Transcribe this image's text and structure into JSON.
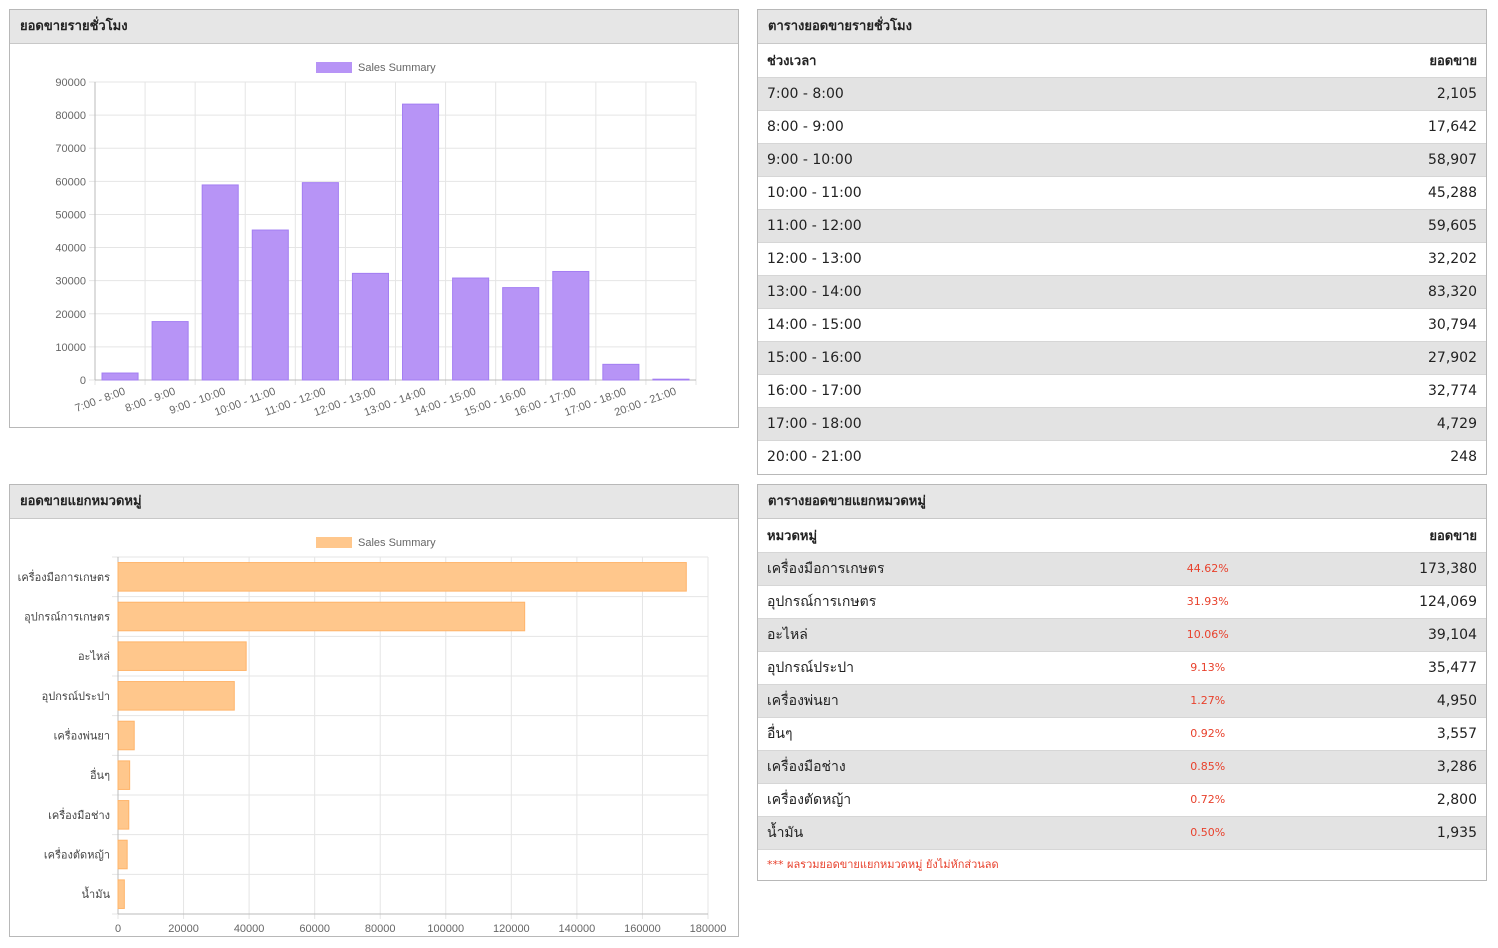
{
  "hourly_panel": {
    "title": "ยอดขายรายชั่วโมง"
  },
  "hourly_table_panel": {
    "title": "ตารางยอดขายรายชั่วโมง",
    "col_time": "ช่วงเวลา",
    "col_sales": "ยอดขาย",
    "rows": [
      {
        "time": "7:00 - 8:00",
        "sales": "2,105"
      },
      {
        "time": "8:00 - 9:00",
        "sales": "17,642"
      },
      {
        "time": "9:00 - 10:00",
        "sales": "58,907"
      },
      {
        "time": "10:00 - 11:00",
        "sales": "45,288"
      },
      {
        "time": "11:00 - 12:00",
        "sales": "59,605"
      },
      {
        "time": "12:00 - 13:00",
        "sales": "32,202"
      },
      {
        "time": "13:00 - 14:00",
        "sales": "83,320"
      },
      {
        "time": "14:00 - 15:00",
        "sales": "30,794"
      },
      {
        "time": "15:00 - 16:00",
        "sales": "27,902"
      },
      {
        "time": "16:00 - 17:00",
        "sales": "32,774"
      },
      {
        "time": "17:00 - 18:00",
        "sales": "4,729"
      },
      {
        "time": "20:00 - 21:00",
        "sales": "248"
      }
    ]
  },
  "category_panel": {
    "title": "ยอดขายแยกหมวดหมู่"
  },
  "category_table_panel": {
    "title": "ตารางยอดขายแยกหมวดหมู่",
    "col_category": "หมวดหมู่",
    "col_sales": "ยอดขาย",
    "rows": [
      {
        "name": "เครื่องมือการเกษตร",
        "pct": "44.62%",
        "sales": "173,380"
      },
      {
        "name": "อุปกรณ์การเกษตร",
        "pct": "31.93%",
        "sales": "124,069"
      },
      {
        "name": "อะไหล่",
        "pct": "10.06%",
        "sales": "39,104"
      },
      {
        "name": "อุปกรณ์ประปา",
        "pct": "9.13%",
        "sales": "35,477"
      },
      {
        "name": "เครื่องพ่นยา",
        "pct": "1.27%",
        "sales": "4,950"
      },
      {
        "name": "อื่นๆ",
        "pct": "0.92%",
        "sales": "3,557"
      },
      {
        "name": "เครื่องมือช่าง",
        "pct": "0.85%",
        "sales": "3,286"
      },
      {
        "name": "เครื่องตัดหญ้า",
        "pct": "0.72%",
        "sales": "2,800"
      },
      {
        "name": "น้ำมัน",
        "pct": "0.50%",
        "sales": "1,935"
      }
    ],
    "note": "*** ผลรวมยอดขายแยกหมวดหมู่ ยังไม่หักส่วนลด"
  },
  "chart_data": [
    {
      "type": "bar",
      "legend": "Sales Summary",
      "legend_position": "top",
      "color": "#b794f6",
      "categories": [
        "7:00 - 8:00",
        "8:00 - 9:00",
        "9:00 - 10:00",
        "10:00 - 11:00",
        "11:00 - 12:00",
        "12:00 - 13:00",
        "13:00 - 14:00",
        "14:00 - 15:00",
        "15:00 - 16:00",
        "16:00 - 17:00",
        "17:00 - 18:00",
        "20:00 - 21:00"
      ],
      "values": [
        2105,
        17642,
        58907,
        45288,
        59605,
        32202,
        83320,
        30794,
        27902,
        32774,
        4729,
        248
      ],
      "ylim": [
        0,
        90000
      ],
      "yticks": [
        "0",
        "10000",
        "20000",
        "30000",
        "40000",
        "50000",
        "60000",
        "70000",
        "80000",
        "90000"
      ],
      "grid": true
    },
    {
      "type": "bar",
      "orientation": "horizontal",
      "legend": "Sales Summary",
      "legend_position": "top",
      "color": "#ffc78c",
      "categories": [
        "เครื่องมือการเกษตร",
        "อุปกรณ์การเกษตร",
        "อะไหล่",
        "อุปกรณ์ประปา",
        "เครื่องพ่นยา",
        "อื่นๆ",
        "เครื่องมือช่าง",
        "เครื่องตัดหญ้า",
        "น้ำมัน"
      ],
      "values": [
        173380,
        124069,
        39104,
        35477,
        4950,
        3557,
        3286,
        2800,
        1935
      ],
      "xlim": [
        0,
        180000
      ],
      "xticks": [
        "0",
        "20000",
        "40000",
        "60000",
        "80000",
        "100000",
        "120000",
        "140000",
        "160000",
        "180000"
      ],
      "grid": true
    }
  ]
}
